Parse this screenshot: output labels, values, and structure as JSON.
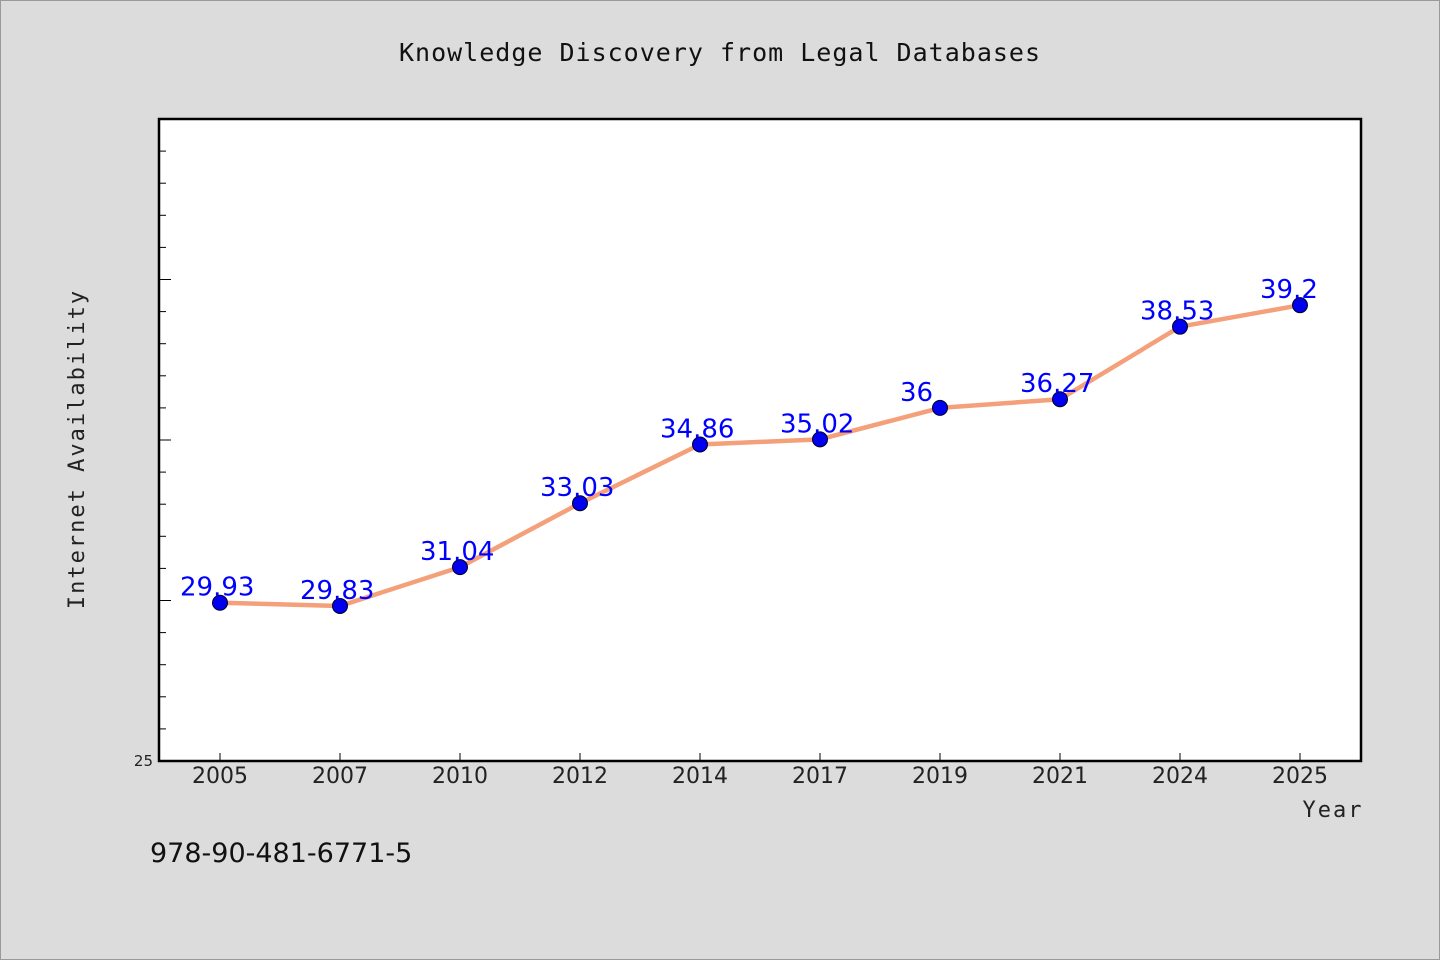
{
  "chart_data": {
    "type": "line",
    "title": "Knowledge Discovery from Legal Databases",
    "xlabel": "Year",
    "ylabel": "Internet Availability",
    "categories": [
      "2005",
      "2007",
      "2010",
      "2012",
      "2014",
      "2017",
      "2019",
      "2021",
      "2024",
      "2025"
    ],
    "series": [
      {
        "values": [
          29.93,
          29.83,
          31.04,
          33.03,
          34.86,
          35.02,
          36,
          36.27,
          38.53,
          39.2
        ],
        "labels": [
          "29.93",
          "29.83",
          "31.04",
          "33.03",
          "34.86",
          "35.02",
          "36",
          "36.27",
          "38.53",
          "39.2"
        ],
        "line_color": "#f4a07a",
        "marker_color": "#0000ee",
        "label_color": "#0000ff"
      }
    ],
    "ylim": [
      25,
      45
    ],
    "yticks": [
      "25"
    ],
    "grid": false,
    "legend": "none",
    "plot_background": "#ffffff",
    "figure_background": "#dcdcdc"
  },
  "annotation": "978-90-481-6771-5"
}
